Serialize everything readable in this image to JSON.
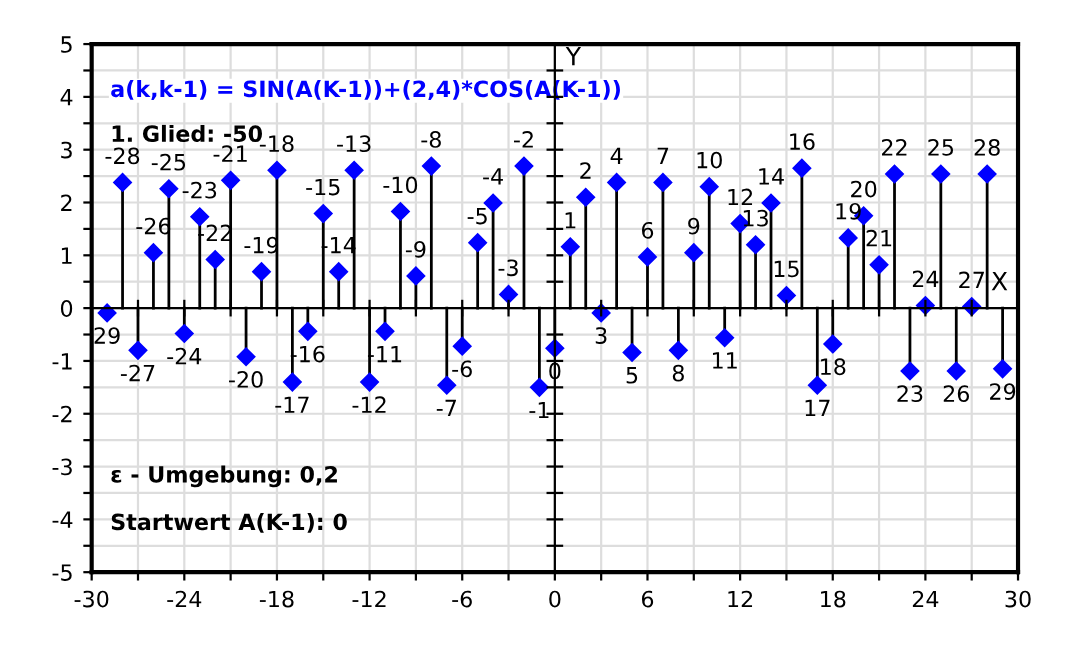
{
  "chart_data": {
    "type": "lollipop",
    "x": [
      -29,
      -28,
      -27,
      -26,
      -25,
      -24,
      -23,
      -22,
      -21,
      -20,
      -19,
      -18,
      -17,
      -16,
      -15,
      -14,
      -13,
      -12,
      -11,
      -10,
      -9,
      -8,
      -7,
      -6,
      -5,
      -4,
      -3,
      -2,
      -1,
      0,
      1,
      2,
      3,
      4,
      5,
      6,
      7,
      8,
      9,
      10,
      11,
      12,
      13,
      14,
      15,
      16,
      17,
      18,
      19,
      20,
      21,
      22,
      23,
      24,
      25,
      26,
      27,
      28,
      29
    ],
    "values": [
      -0.09,
      2.38,
      -0.8,
      1.05,
      2.26,
      -0.48,
      1.73,
      0.92,
      2.42,
      -0.92,
      0.69,
      2.61,
      -1.4,
      -0.44,
      1.79,
      0.69,
      2.61,
      -1.4,
      -0.44,
      1.83,
      0.61,
      2.69,
      -1.46,
      -0.72,
      1.24,
      1.99,
      0.26,
      2.69,
      -1.5,
      -0.76,
      1.16,
      2.1,
      -0.09,
      2.38,
      -0.84,
      0.97,
      2.38,
      -0.8,
      1.05,
      2.3,
      -0.56,
      1.6,
      1.2,
      1.99,
      0.24,
      2.65,
      -1.46,
      -0.68,
      1.33,
      1.75,
      0.82,
      2.54,
      -1.19,
      0.05,
      2.54,
      -1.19,
      0.03,
      2.54,
      -1.15
    ],
    "color": "#0000ff",
    "marker": "diamond",
    "xlim": [
      -30,
      30
    ],
    "xticks": [
      -30,
      {
        "value": -27,
        "label": null
      },
      -24,
      {
        "value": -21,
        "label": null
      },
      -18,
      {
        "value": -15,
        "label": null
      },
      -12,
      {
        "value": -9,
        "label": null
      },
      -6,
      {
        "value": -3,
        "label": null
      },
      0,
      {
        "value": 3,
        "label": null
      },
      6,
      {
        "value": 9,
        "label": null
      },
      12,
      {
        "value": 15,
        "label": null
      },
      18,
      {
        "value": 21,
        "label": null
      },
      24,
      {
        "value": 27,
        "label": null
      },
      30
    ],
    "ylim": [
      -5,
      5
    ],
    "yticks": [
      -5,
      {
        "value": -4.5,
        "label": null
      },
      -4,
      {
        "value": -3.5,
        "label": null
      },
      -3,
      {
        "value": -2.5,
        "label": null
      },
      -2,
      {
        "value": -1.5,
        "label": null
      },
      -1,
      {
        "value": -0.5,
        "label": null
      },
      0,
      {
        "value": 0.5,
        "label": null
      },
      1,
      {
        "value": 1.5,
        "label": null
      },
      2,
      {
        "value": 2.5,
        "label": null
      },
      3,
      {
        "value": 3.5,
        "label": null
      },
      4,
      {
        "value": 4.5,
        "label": null
      },
      5
    ],
    "grid": true,
    "xlabel": "X",
    "ylabel": "Y",
    "annotations": [
      "a(k,k-1) = SIN(A(K-1))+(2,4)*COS(A(K-1))",
      "1. Glied: -50",
      "ε - Umgebung: 0,2",
      "Startwert A(K-1): 0",
      {
        "text": "29",
        "x": -29,
        "y": -0.09
      },
      {
        "text": "-28",
        "x": -28,
        "y": 2.38
      },
      {
        "text": "-27",
        "x": -27,
        "y": -0.8
      },
      {
        "text": "-26",
        "x": -26,
        "y": 1.05
      },
      {
        "text": "-25",
        "x": -25,
        "y": 2.26
      },
      {
        "text": "-24",
        "x": -24,
        "y": -0.48
      },
      {
        "text": "-23",
        "x": -23,
        "y": 1.73
      },
      {
        "text": "-22",
        "x": -22,
        "y": 0.92
      },
      {
        "text": "-21",
        "x": -21,
        "y": 2.42
      },
      {
        "text": "-20",
        "x": -20,
        "y": -0.92
      },
      {
        "text": "-19",
        "x": -19,
        "y": 0.69
      },
      {
        "text": "-18",
        "x": -18,
        "y": 2.61
      },
      {
        "text": "-17",
        "x": -17,
        "y": -1.4
      },
      {
        "text": "-16",
        "x": -16,
        "y": -0.44
      },
      {
        "text": "-15",
        "x": -15,
        "y": 1.79
      },
      {
        "text": "-14",
        "x": -14,
        "y": 0.69
      },
      {
        "text": "-13",
        "x": -13,
        "y": 2.61
      },
      {
        "text": "-12",
        "x": -12,
        "y": -1.4
      },
      {
        "text": "-11",
        "x": -11,
        "y": -0.44
      },
      {
        "text": "-10",
        "x": -10,
        "y": 1.83
      },
      {
        "text": "-9",
        "x": -9,
        "y": 0.61
      },
      {
        "text": "-8",
        "x": -8,
        "y": 2.69
      },
      {
        "text": "-7",
        "x": -7,
        "y": -1.46
      },
      {
        "text": "-6",
        "x": -6,
        "y": -0.72
      },
      {
        "text": "-5",
        "x": -5,
        "y": 1.24
      },
      {
        "text": "-4",
        "x": -4,
        "y": 1.99
      },
      {
        "text": "-3",
        "x": -3,
        "y": 0.26
      },
      {
        "text": "-2",
        "x": -2,
        "y": 2.69
      },
      {
        "text": "-1",
        "x": -1,
        "y": -1.5
      },
      {
        "text": "0",
        "x": 0,
        "y": -0.76
      },
      {
        "text": "1",
        "x": 1,
        "y": 1.16
      },
      {
        "text": "2",
        "x": 2,
        "y": 2.1
      },
      {
        "text": "3",
        "x": 3,
        "y": -0.09
      },
      {
        "text": "4",
        "x": 4,
        "y": 2.38
      },
      {
        "text": "5",
        "x": 5,
        "y": -0.84
      },
      {
        "text": "6",
        "x": 6,
        "y": 0.97
      },
      {
        "text": "7",
        "x": 7,
        "y": 2.38
      },
      {
        "text": "8",
        "x": 8,
        "y": -0.8
      },
      {
        "text": "9",
        "x": 9,
        "y": 1.05
      },
      {
        "text": "10",
        "x": 10,
        "y": 2.3
      },
      {
        "text": "11",
        "x": 11,
        "y": -0.56
      },
      {
        "text": "12",
        "x": 12,
        "y": 1.6
      },
      {
        "text": "13",
        "x": 13,
        "y": 1.2
      },
      {
        "text": "14",
        "x": 14,
        "y": 1.99
      },
      {
        "text": "15",
        "x": 15,
        "y": 0.24
      },
      {
        "text": "16",
        "x": 16,
        "y": 2.65
      },
      {
        "text": "17",
        "x": 17,
        "y": -1.46
      },
      {
        "text": "18",
        "x": 18,
        "y": -0.68
      },
      {
        "text": "19",
        "x": 19,
        "y": 1.33
      },
      {
        "text": "20",
        "x": 20,
        "y": 1.75
      },
      {
        "text": "21",
        "x": 21,
        "y": 0.82
      },
      {
        "text": "22",
        "x": 22,
        "y": 2.54
      },
      {
        "text": "23",
        "x": 23,
        "y": -1.19
      },
      {
        "text": "24",
        "x": 24,
        "y": 0.05
      },
      {
        "text": "25",
        "x": 25,
        "y": 2.54
      },
      {
        "text": "26",
        "x": 26,
        "y": -1.19
      },
      {
        "text": "27",
        "x": 27,
        "y": 0.03
      },
      {
        "text": "28",
        "x": 28,
        "y": 2.54
      },
      {
        "text": "29",
        "x": 29,
        "y": -1.15
      }
    ]
  }
}
